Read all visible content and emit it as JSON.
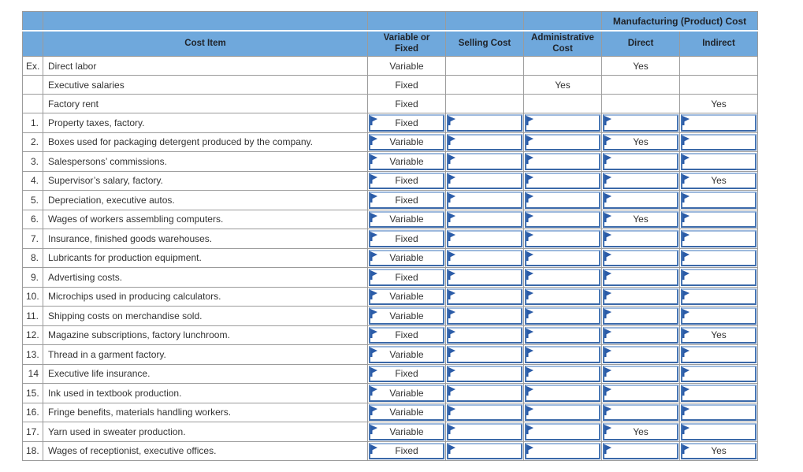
{
  "table": {
    "group_header": "Manufacturing (Product) Cost",
    "columns": {
      "item": "Cost Item",
      "vf": "Variable or Fixed",
      "selling": "Selling Cost",
      "admin": "Administrative Cost",
      "direct": "Direct",
      "indirect": "Indirect"
    },
    "example_rows": [
      {
        "label": "Ex.",
        "item": "Direct labor",
        "vf": "Variable",
        "selling": "",
        "admin": "",
        "direct": "Yes",
        "indirect": ""
      },
      {
        "label": "",
        "item": "Executive salaries",
        "vf": "Fixed",
        "selling": "",
        "admin": "Yes",
        "direct": "",
        "indirect": ""
      },
      {
        "label": "",
        "item": "Factory rent",
        "vf": "Fixed",
        "selling": "",
        "admin": "",
        "direct": "",
        "indirect": "Yes"
      }
    ],
    "rows": [
      {
        "label": "1.",
        "item": "Property taxes, factory.",
        "vf": "Fixed",
        "selling": "",
        "admin": "",
        "direct": "",
        "indirect": ""
      },
      {
        "label": "2.",
        "item": "Boxes used for packaging detergent produced by the company.",
        "vf": "Variable",
        "selling": "",
        "admin": "",
        "direct": "Yes",
        "indirect": ""
      },
      {
        "label": "3.",
        "item": "Salespersons’ commissions.",
        "vf": "Variable",
        "selling": "",
        "admin": "",
        "direct": "",
        "indirect": ""
      },
      {
        "label": "4.",
        "item": "Supervisor’s salary, factory.",
        "vf": "Fixed",
        "selling": "",
        "admin": "",
        "direct": "",
        "indirect": "Yes"
      },
      {
        "label": "5.",
        "item": "Depreciation, executive autos.",
        "vf": "Fixed",
        "selling": "",
        "admin": "",
        "direct": "",
        "indirect": ""
      },
      {
        "label": "6.",
        "item": "Wages of workers assembling computers.",
        "vf": "Variable",
        "selling": "",
        "admin": "",
        "direct": "Yes",
        "indirect": ""
      },
      {
        "label": "7.",
        "item": "Insurance, finished goods warehouses.",
        "vf": "Fixed",
        "selling": "",
        "admin": "",
        "direct": "",
        "indirect": ""
      },
      {
        "label": "8.",
        "item": "Lubricants for production equipment.",
        "vf": "Variable",
        "selling": "",
        "admin": "",
        "direct": "",
        "indirect": ""
      },
      {
        "label": "9.",
        "item": "Advertising costs.",
        "vf": "Fixed",
        "selling": "",
        "admin": "",
        "direct": "",
        "indirect": ""
      },
      {
        "label": "10.",
        "item": "Microchips used in producing calculators.",
        "vf": "Variable",
        "selling": "",
        "admin": "",
        "direct": "",
        "indirect": ""
      },
      {
        "label": "11.",
        "item": "Shipping costs on merchandise sold.",
        "vf": "Variable",
        "selling": "",
        "admin": "",
        "direct": "",
        "indirect": ""
      },
      {
        "label": "12.",
        "item": "Magazine subscriptions, factory lunchroom.",
        "vf": "Fixed",
        "selling": "",
        "admin": "",
        "direct": "",
        "indirect": "Yes"
      },
      {
        "label": "13.",
        "item": "Thread in a garment factory.",
        "vf": "Variable",
        "selling": "",
        "admin": "",
        "direct": "",
        "indirect": ""
      },
      {
        "label": "14",
        "item": "Executive life insurance.",
        "vf": "Fixed",
        "selling": "",
        "admin": "",
        "direct": "",
        "indirect": ""
      },
      {
        "label": "15.",
        "item": "Ink used in textbook production.",
        "vf": "Variable",
        "selling": "",
        "admin": "",
        "direct": "",
        "indirect": ""
      },
      {
        "label": "16.",
        "item": "Fringe benefits, materials handling workers.",
        "vf": "Variable",
        "selling": "",
        "admin": "",
        "direct": "",
        "indirect": ""
      },
      {
        "label": "17.",
        "item": "Yarn used in sweater production.",
        "vf": "Variable",
        "selling": "",
        "admin": "",
        "direct": "Yes",
        "indirect": ""
      },
      {
        "label": "18.",
        "item": "Wages of receptionist, executive offices.",
        "vf": "Fixed",
        "selling": "",
        "admin": "",
        "direct": "",
        "indirect": "Yes"
      }
    ]
  },
  "colors": {
    "header_bg": "#6fa8dc",
    "grid_border": "#9b9b9b",
    "answer_border": "#4776b4",
    "flag": "#2b5ca8",
    "text": "#333333"
  }
}
